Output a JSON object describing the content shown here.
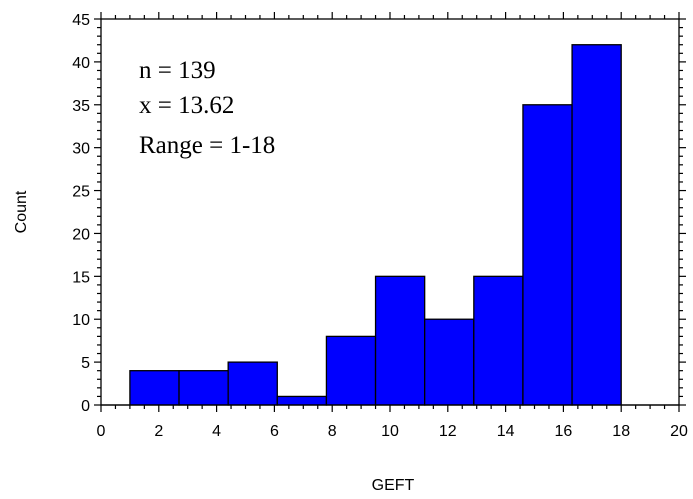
{
  "chart_data": {
    "type": "bar",
    "subtype": "histogram",
    "xlabel": "GEFT",
    "ylabel": "Count",
    "xlim": [
      0,
      20
    ],
    "ylim": [
      0,
      45
    ],
    "xticks": [
      0,
      2,
      4,
      6,
      8,
      10,
      12,
      14,
      16,
      18,
      20
    ],
    "yticks": [
      0,
      5,
      10,
      15,
      20,
      25,
      30,
      35,
      40,
      45
    ],
    "bins": [
      {
        "x0": 1.0,
        "x1": 2.7,
        "value": 4
      },
      {
        "x0": 2.7,
        "x1": 4.4,
        "value": 4
      },
      {
        "x0": 4.4,
        "x1": 6.1,
        "value": 5
      },
      {
        "x0": 6.1,
        "x1": 7.8,
        "value": 1
      },
      {
        "x0": 7.8,
        "x1": 9.5,
        "value": 8
      },
      {
        "x0": 9.5,
        "x1": 11.2,
        "value": 15
      },
      {
        "x0": 11.2,
        "x1": 12.9,
        "value": 10
      },
      {
        "x0": 12.9,
        "x1": 14.6,
        "value": 15
      },
      {
        "x0": 14.6,
        "x1": 16.3,
        "value": 35
      },
      {
        "x0": 16.3,
        "x1": 18.0,
        "value": 42
      }
    ],
    "bar_color": "#0000ff",
    "grid": false,
    "annotations": [
      "n = 139",
      "x = 13.62",
      "Range = 1-18"
    ]
  }
}
